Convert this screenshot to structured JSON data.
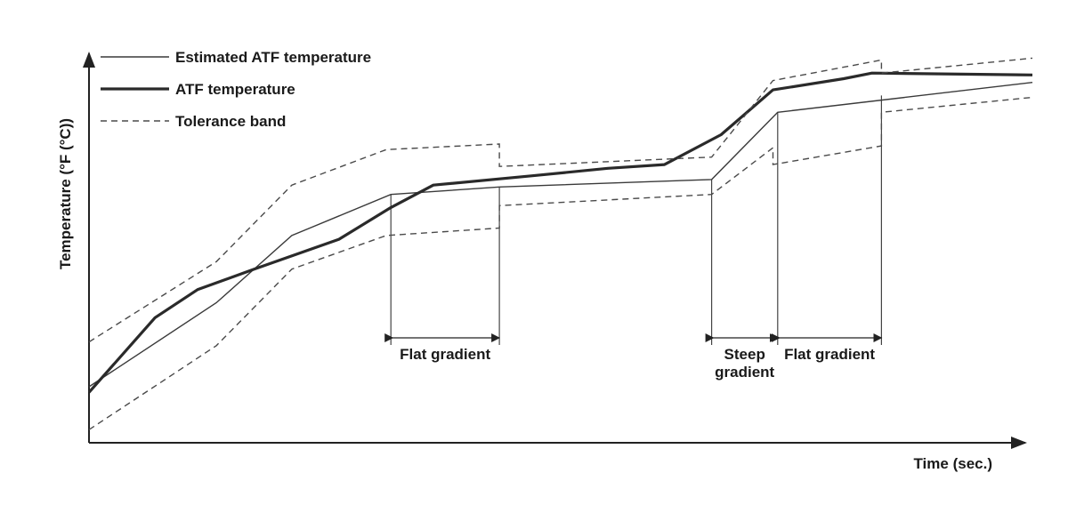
{
  "chart_data": {
    "type": "line",
    "title": "",
    "xlabel": "Time (sec.)",
    "ylabel": "Temperature (°F (°C))",
    "xlim": [
      0,
      1000
    ],
    "ylim": [
      0,
      1000
    ],
    "grid": false,
    "legend_position": "top-left",
    "series": [
      {
        "name": "Estimated ATF temperature",
        "style": "thin-solid",
        "points": [
          [
            0,
            150
          ],
          [
            135,
            375
          ],
          [
            215,
            555
          ],
          [
            320,
            665
          ],
          [
            435,
            685
          ],
          [
            660,
            705
          ],
          [
            730,
            885
          ],
          [
            1000,
            965
          ]
        ]
      },
      {
        "name": "ATF temperature",
        "style": "thick-solid",
        "points": [
          [
            0,
            135
          ],
          [
            70,
            335
          ],
          [
            115,
            410
          ],
          [
            175,
            465
          ],
          [
            265,
            545
          ],
          [
            320,
            630
          ],
          [
            365,
            690
          ],
          [
            470,
            715
          ],
          [
            550,
            735
          ],
          [
            610,
            745
          ],
          [
            670,
            825
          ],
          [
            725,
            945
          ],
          [
            800,
            975
          ],
          [
            830,
            990
          ],
          [
            1000,
            985
          ]
        ]
      },
      {
        "name": "Tolerance band",
        "style": "dashed",
        "points": [
          [
            0,
            270
          ],
          [
            135,
            485
          ],
          [
            215,
            690
          ],
          [
            315,
            785
          ],
          [
            435,
            800
          ],
          [
            435,
            740
          ],
          [
            660,
            765
          ],
          [
            725,
            970
          ],
          [
            840,
            1025
          ],
          [
            840,
            990
          ],
          [
            1000,
            1030
          ]
        ]
      },
      {
        "name": "Tolerance band",
        "style": "dashed",
        "points": [
          [
            0,
            35
          ],
          [
            135,
            260
          ],
          [
            215,
            465
          ],
          [
            315,
            555
          ],
          [
            435,
            575
          ],
          [
            435,
            635
          ],
          [
            660,
            665
          ],
          [
            725,
            790
          ],
          [
            725,
            745
          ],
          [
            840,
            795
          ],
          [
            840,
            885
          ],
          [
            1000,
            925
          ]
        ]
      }
    ],
    "reference_lines": [
      {
        "x": 320,
        "y_top": 665
      },
      {
        "x": 435,
        "y_top": 685
      },
      {
        "x": 660,
        "y_top": 705
      },
      {
        "x": 730,
        "y_top": 885
      },
      {
        "x": 840,
        "y_top": 930
      }
    ],
    "annotations": [
      {
        "label": "Flat gradient",
        "x_start": 320,
        "x_end": 435
      },
      {
        "label": "Steep\ngradient",
        "x_start": 660,
        "x_end": 730
      },
      {
        "label": "Flat gradient",
        "x_start": 730,
        "x_end": 840
      }
    ]
  }
}
